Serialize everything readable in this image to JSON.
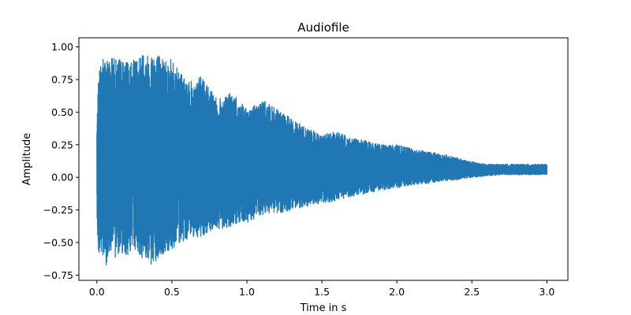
{
  "chart_data": {
    "type": "line",
    "title": "Audiofile",
    "xlabel": "Time in s",
    "ylabel": "Amplitude",
    "xlim": [
      -0.12,
      3.14
    ],
    "ylim": [
      -0.79,
      1.07
    ],
    "xticks": [
      0.0,
      0.5,
      1.0,
      1.5,
      2.0,
      2.5,
      3.0
    ],
    "xtick_labels": [
      "0.0",
      "0.5",
      "1.0",
      "1.5",
      "2.0",
      "2.5",
      "3.0"
    ],
    "yticks": [
      -0.75,
      -0.5,
      -0.25,
      0.0,
      0.25,
      0.5,
      0.75,
      1.0
    ],
    "ytick_labels": [
      "−0.75",
      "−0.50",
      "−0.25",
      "0.00",
      "0.25",
      "0.50",
      "0.75",
      "1.00"
    ],
    "grid": false,
    "series": [
      {
        "color": "#1f77b4",
        "x": [
          0.0,
          0.01,
          0.02,
          0.04,
          0.06,
          0.08,
          0.1,
          0.12,
          0.15,
          0.2,
          0.25,
          0.3,
          0.35,
          0.38,
          0.4,
          0.45,
          0.5,
          0.55,
          0.6,
          0.7,
          0.8,
          0.9,
          1.0,
          1.1,
          1.2,
          1.3,
          1.4,
          1.5,
          1.6,
          1.7,
          1.8,
          1.9,
          2.0,
          2.1,
          2.2,
          2.3,
          2.4,
          2.5,
          2.6,
          2.7,
          2.8,
          2.9,
          3.0
        ],
        "y_max": [
          0.4,
          0.74,
          0.88,
          0.93,
          0.92,
          0.9,
          0.95,
          0.9,
          0.92,
          0.88,
          0.9,
          0.96,
          0.95,
          1.0,
          0.95,
          0.93,
          0.9,
          0.83,
          0.72,
          0.78,
          0.6,
          0.65,
          0.52,
          0.6,
          0.52,
          0.45,
          0.38,
          0.33,
          0.35,
          0.3,
          0.28,
          0.25,
          0.25,
          0.22,
          0.2,
          0.18,
          0.15,
          0.12,
          0.1,
          0.1,
          0.1,
          0.1,
          0.1
        ],
        "y_min": [
          -0.25,
          -0.62,
          -0.6,
          -0.65,
          -0.68,
          -0.6,
          -0.55,
          -0.62,
          -0.58,
          -0.6,
          -0.55,
          -0.62,
          -0.65,
          -0.73,
          -0.65,
          -0.6,
          -0.55,
          -0.5,
          -0.48,
          -0.45,
          -0.4,
          -0.38,
          -0.35,
          -0.3,
          -0.28,
          -0.25,
          -0.22,
          -0.2,
          -0.18,
          -0.15,
          -0.12,
          -0.1,
          -0.08,
          -0.06,
          -0.05,
          -0.03,
          -0.02,
          0.0,
          0.01,
          0.02,
          0.02,
          0.02,
          0.02
        ]
      }
    ]
  }
}
